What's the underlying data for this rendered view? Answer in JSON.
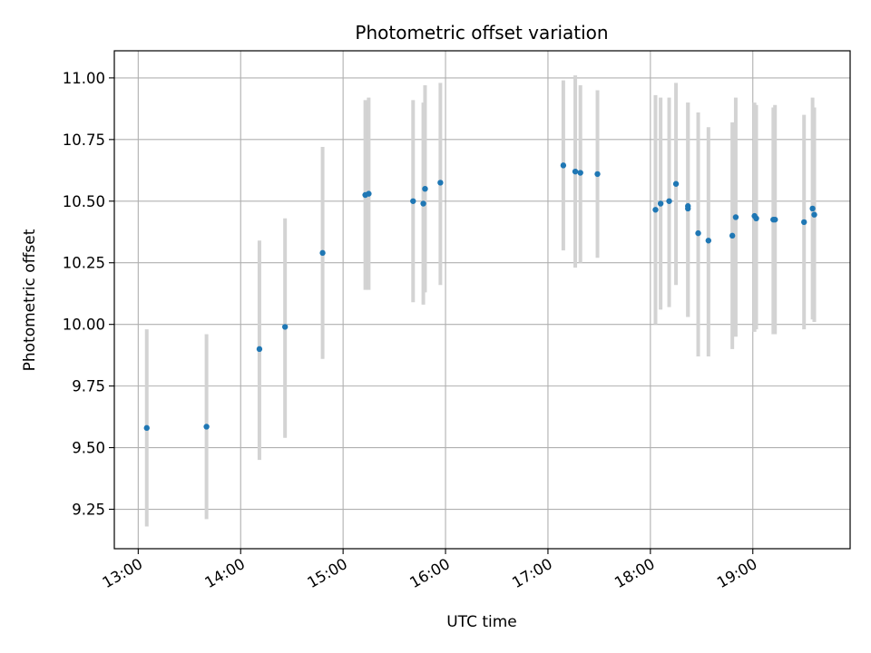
{
  "chart_data": {
    "type": "scatter",
    "title": "Photometric offset variation",
    "xlabel": "UTC time",
    "ylabel": "Photometric offset",
    "grid": true,
    "xlim": [
      "12:46",
      "19:57"
    ],
    "ylim": [
      9.09,
      11.11
    ],
    "x_ticks": [
      "13:00",
      "14:00",
      "15:00",
      "16:00",
      "17:00",
      "18:00",
      "19:00"
    ],
    "y_ticks": [
      "9.25",
      "9.50",
      "9.75",
      "10.00",
      "10.25",
      "10.50",
      "10.75",
      "11.00"
    ],
    "colors": {
      "point": "#1f77b4",
      "errorbar": "#d3d3d3",
      "grid": "#b0b0b0"
    },
    "points": [
      {
        "x": "13:05",
        "y": 9.58,
        "low": 9.18,
        "high": 9.98
      },
      {
        "x": "13:40",
        "y": 9.585,
        "low": 9.21,
        "high": 9.96
      },
      {
        "x": "14:11",
        "y": 9.9,
        "low": 9.45,
        "high": 10.34
      },
      {
        "x": "14:26",
        "y": 9.99,
        "low": 9.54,
        "high": 10.43
      },
      {
        "x": "14:48",
        "y": 10.29,
        "low": 9.86,
        "high": 10.72
      },
      {
        "x": "15:13",
        "y": 10.525,
        "low": 10.14,
        "high": 10.91
      },
      {
        "x": "15:15",
        "y": 10.53,
        "low": 10.14,
        "high": 10.92
      },
      {
        "x": "15:41",
        "y": 10.5,
        "low": 10.09,
        "high": 10.91
      },
      {
        "x": "15:47",
        "y": 10.49,
        "low": 10.08,
        "high": 10.9
      },
      {
        "x": "15:48",
        "y": 10.55,
        "low": 10.13,
        "high": 10.97
      },
      {
        "x": "15:57",
        "y": 10.575,
        "low": 10.16,
        "high": 10.98
      },
      {
        "x": "17:09",
        "y": 10.645,
        "low": 10.3,
        "high": 10.99
      },
      {
        "x": "17:16",
        "y": 10.62,
        "low": 10.23,
        "high": 11.01
      },
      {
        "x": "17:19",
        "y": 10.615,
        "low": 10.25,
        "high": 10.97
      },
      {
        "x": "17:29",
        "y": 10.61,
        "low": 10.27,
        "high": 10.95
      },
      {
        "x": "18:03",
        "y": 10.465,
        "low": 10.0,
        "high": 10.93
      },
      {
        "x": "18:06",
        "y": 10.49,
        "low": 10.06,
        "high": 10.92
      },
      {
        "x": "18:11",
        "y": 10.5,
        "low": 10.07,
        "high": 10.92
      },
      {
        "x": "18:15",
        "y": 10.57,
        "low": 10.16,
        "high": 10.98
      },
      {
        "x": "18:22",
        "y": 10.48,
        "low": 10.03,
        "high": 10.9
      },
      {
        "x": "18:22",
        "y": 10.47,
        "low": 10.03,
        "high": 10.9
      },
      {
        "x": "18:28",
        "y": 10.37,
        "low": 9.87,
        "high": 10.86
      },
      {
        "x": "18:34",
        "y": 10.34,
        "low": 9.87,
        "high": 10.8
      },
      {
        "x": "18:48",
        "y": 10.36,
        "low": 9.9,
        "high": 10.82
      },
      {
        "x": "18:50",
        "y": 10.435,
        "low": 9.95,
        "high": 10.92
      },
      {
        "x": "19:01",
        "y": 10.44,
        "low": 9.97,
        "high": 10.9
      },
      {
        "x": "19:02",
        "y": 10.43,
        "low": 9.98,
        "high": 10.89
      },
      {
        "x": "19:12",
        "y": 10.425,
        "low": 9.96,
        "high": 10.88
      },
      {
        "x": "19:13",
        "y": 10.425,
        "low": 9.96,
        "high": 10.89
      },
      {
        "x": "19:30",
        "y": 10.415,
        "low": 9.98,
        "high": 10.85
      },
      {
        "x": "19:35",
        "y": 10.47,
        "low": 10.02,
        "high": 10.92
      },
      {
        "x": "19:36",
        "y": 10.445,
        "low": 10.01,
        "high": 10.88
      }
    ]
  }
}
